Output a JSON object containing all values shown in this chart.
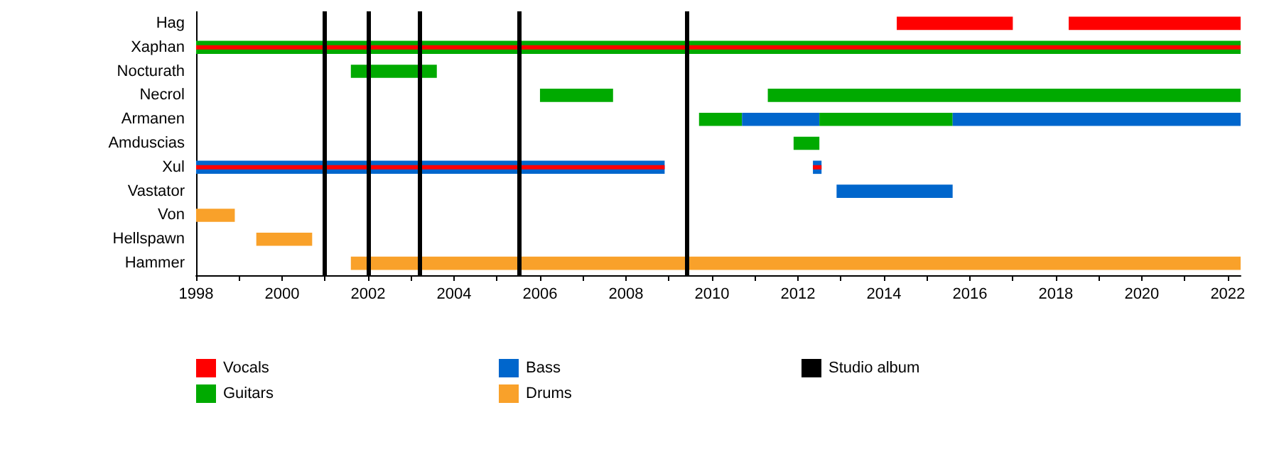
{
  "chart_data": {
    "type": "bar",
    "orientation": "horizontal",
    "categories": [
      "Hag",
      "Xaphan",
      "Nocturath",
      "Necrol",
      "Armanen",
      "Amduscias",
      "Xul",
      "Vastator",
      "Von",
      "Hellspawn",
      "Hammer"
    ],
    "series": [
      {
        "name": "Vocals",
        "color": "#ff0000",
        "base": [
          2014.3,
          1998,
          null,
          null,
          null,
          null,
          1998,
          null,
          null,
          null,
          null
        ],
        "values": [
          2.7,
          24.3,
          null,
          null,
          null,
          null,
          10.9,
          null,
          null,
          null,
          null
        ]
      },
      {
        "name": "Guitars",
        "color": "#00aa00",
        "base": [
          null,
          1998,
          2001.6,
          2006.0,
          2009.7,
          2011.9,
          null,
          null,
          null,
          null,
          null
        ],
        "values": [
          null,
          24.3,
          2.0,
          1.7,
          1.0,
          0.6,
          null,
          null,
          null,
          null,
          null
        ]
      },
      {
        "name": "Bass",
        "color": "#0066cc",
        "base": [
          null,
          null,
          null,
          null,
          2010.7,
          null,
          1998,
          2012.9,
          null,
          null,
          null
        ],
        "values": [
          null,
          null,
          null,
          null,
          1.8,
          null,
          10.9,
          2.7,
          null,
          null,
          null
        ]
      },
      {
        "name": "Drums",
        "color": "#f9a12a",
        "base": [
          null,
          null,
          null,
          null,
          null,
          null,
          null,
          null,
          1998,
          1999.4,
          2001.6
        ],
        "values": [
          null,
          null,
          null,
          null,
          null,
          null,
          null,
          null,
          0.9,
          1.3,
          20.7
        ]
      },
      {
        "color": "#ff0000",
        "base": [
          2018.3,
          null,
          null,
          null,
          null,
          null,
          2012.35,
          null,
          null,
          null,
          null
        ],
        "values": [
          4.0,
          null,
          null,
          null,
          null,
          null,
          0.2,
          null,
          null,
          null,
          null
        ]
      },
      {
        "color": "#00aa00",
        "base": [
          null,
          null,
          null,
          2011.3,
          2012.5,
          null,
          null,
          null,
          null,
          null,
          null
        ],
        "values": [
          null,
          null,
          null,
          11.0,
          3.1,
          null,
          null,
          null,
          null,
          null,
          null
        ]
      },
      {
        "color": "#0066cc",
        "base": [
          null,
          null,
          null,
          null,
          2015.6,
          null,
          2012.35,
          null,
          null,
          null,
          null
        ],
        "values": [
          null,
          null,
          null,
          null,
          6.7,
          null,
          0.2,
          null,
          null,
          null,
          null
        ]
      }
    ],
    "xlim": [
      1998,
      2022.3
    ],
    "xticks": [
      1998,
      {
        "value": 1999,
        "label": null
      },
      2000,
      {
        "value": 2001,
        "label": null
      },
      2002,
      {
        "value": 2003,
        "label": null
      },
      2004,
      {
        "value": 2005,
        "label": null
      },
      2006,
      {
        "value": 2007,
        "label": null
      },
      2008,
      {
        "value": 2009,
        "label": null
      },
      2010,
      {
        "value": 2011,
        "label": null
      },
      2012,
      {
        "value": 2013,
        "label": null
      },
      2014,
      {
        "value": 2015,
        "label": null
      },
      2016,
      {
        "value": 2017,
        "label": null
      },
      2018,
      {
        "value": 2019,
        "label": null
      },
      2020,
      {
        "value": 2021,
        "label": null
      },
      2022
    ],
    "ref_lines": [
      {
        "axis": "x",
        "value": 2001.0,
        "label": "Studio album",
        "color": "#000000"
      },
      {
        "axis": "x",
        "value": 2002.0,
        "color": "#000000"
      },
      {
        "axis": "x",
        "value": 2003.2,
        "color": "#000000"
      },
      {
        "axis": "x",
        "value": 2005.5,
        "color": "#000000"
      },
      {
        "axis": "x",
        "value": 2009.4,
        "color": "#000000"
      }
    ],
    "grid": false,
    "legend": "bottom left"
  }
}
